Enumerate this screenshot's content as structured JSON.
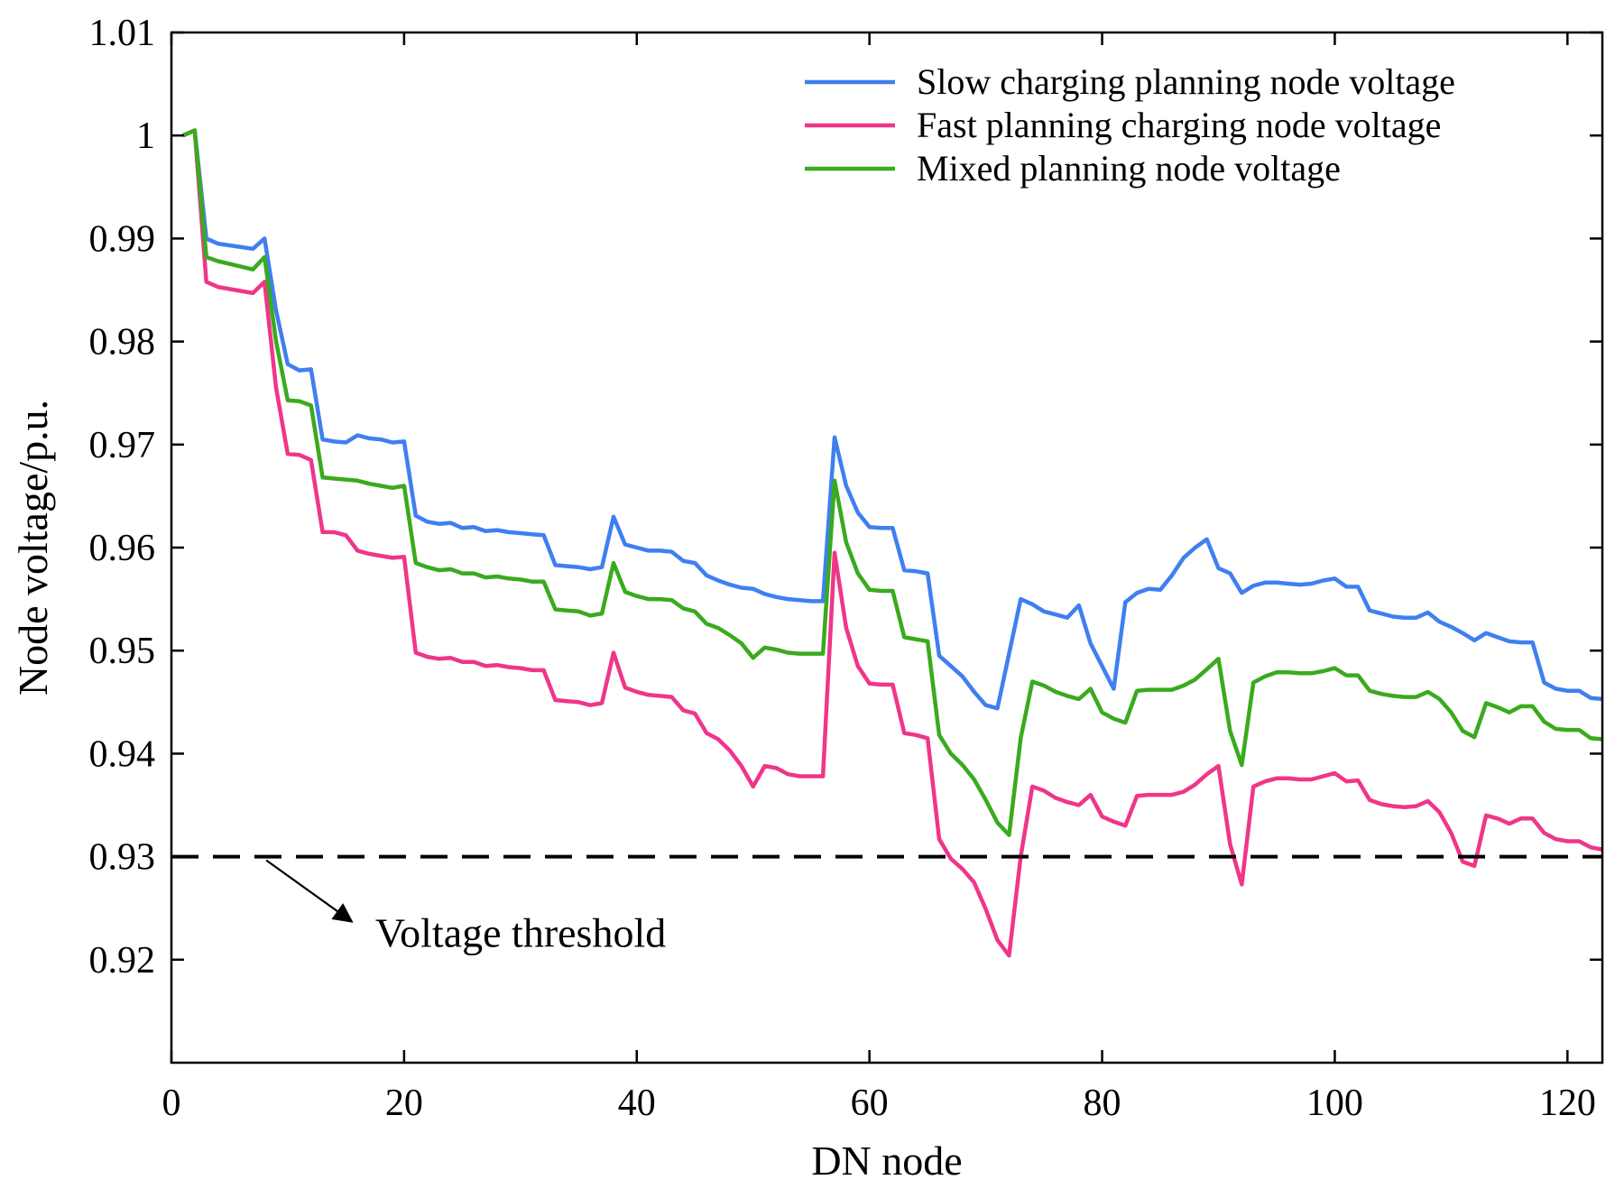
{
  "chart_data": {
    "type": "line",
    "title": "",
    "xlabel": "DN node",
    "ylabel": "Node voltage/p.u.",
    "xlim": [
      0,
      123
    ],
    "ylim": [
      0.91,
      1.01
    ],
    "xticks": [
      0,
      20,
      40,
      60,
      80,
      100,
      120
    ],
    "xtick_labels": [
      "0",
      "20",
      "40",
      "60",
      "80",
      "100",
      "120"
    ],
    "yticks": [
      0.92,
      0.93,
      0.94,
      0.95,
      0.96,
      0.97,
      0.98,
      0.99,
      1.0,
      1.01
    ],
    "ytick_labels": [
      "0.92",
      "0.93",
      "0.94",
      "0.95",
      "0.96",
      "0.97",
      "0.98",
      "0.99",
      "1",
      "1.01"
    ],
    "grid": false,
    "legend_position": "top-right",
    "series": [
      {
        "name": "Slow charging planning node voltage",
        "color": "#3f7ff0",
        "x": [
          1,
          2,
          3,
          4,
          7,
          8,
          9,
          10,
          11,
          12,
          13,
          14,
          15,
          16,
          17,
          18,
          19,
          20,
          21,
          22,
          23,
          24,
          25,
          26,
          27,
          28,
          29,
          30,
          31,
          32,
          33,
          34,
          35,
          36,
          37,
          38,
          39,
          40,
          41,
          42,
          43,
          44,
          45,
          46,
          47,
          48,
          49,
          50,
          51,
          52,
          53,
          54,
          55,
          56,
          57,
          58,
          59,
          60,
          61,
          62,
          63,
          64,
          65,
          66,
          67,
          68,
          69,
          70,
          71,
          72,
          73,
          74,
          75,
          76,
          77,
          78,
          79,
          80,
          81,
          82,
          83,
          84,
          85,
          86,
          87,
          88,
          89,
          90,
          91,
          92,
          93,
          94,
          95,
          96,
          97,
          98,
          99,
          100,
          101,
          102,
          103,
          104,
          105,
          106,
          107,
          108,
          109,
          110,
          111,
          112,
          113,
          114,
          115,
          116,
          117,
          118,
          119,
          120,
          121,
          122,
          123
        ],
        "values": [
          1.0,
          1.0005,
          0.99,
          0.9895,
          0.989,
          0.99,
          0.983,
          0.9778,
          0.9772,
          0.9773,
          0.9705,
          0.9703,
          0.9702,
          0.9709,
          0.9706,
          0.9705,
          0.9702,
          0.9703,
          0.9631,
          0.9625,
          0.9623,
          0.9624,
          0.9619,
          0.962,
          0.9616,
          0.9617,
          0.9615,
          0.9614,
          0.9613,
          0.9612,
          0.9583,
          0.9582,
          0.9581,
          0.9579,
          0.9581,
          0.963,
          0.9603,
          0.96,
          0.9597,
          0.9597,
          0.9596,
          0.9587,
          0.9585,
          0.9573,
          0.9568,
          0.9564,
          0.9561,
          0.956,
          0.9555,
          0.9552,
          0.955,
          0.9549,
          0.9548,
          0.9548,
          0.9707,
          0.966,
          0.9634,
          0.962,
          0.9619,
          0.9619,
          0.9578,
          0.9577,
          0.9575,
          0.9495,
          0.9485,
          0.9475,
          0.946,
          0.9447,
          0.9444,
          0.9497,
          0.955,
          0.9545,
          0.9538,
          0.9535,
          0.9532,
          0.9544,
          0.9507,
          0.9485,
          0.9463,
          0.9547,
          0.9556,
          0.956,
          0.9559,
          0.9573,
          0.959,
          0.96,
          0.9608,
          0.958,
          0.9575,
          0.9556,
          0.9563,
          0.9566,
          0.9566,
          0.9565,
          0.9564,
          0.9565,
          0.9568,
          0.957,
          0.9562,
          0.9562,
          0.9539,
          0.9536,
          0.9533,
          0.9532,
          0.9532,
          0.9537,
          0.9528,
          0.9523,
          0.9517,
          0.951,
          0.9517,
          0.9513,
          0.9509,
          0.9508,
          0.9508,
          0.9469,
          0.9463,
          0.9461,
          0.9461,
          0.9454,
          0.9453
        ]
      },
      {
        "name": "Fast planning charging node voltage",
        "color": "#f0358a",
        "x": [
          1,
          2,
          3,
          4,
          7,
          8,
          9,
          10,
          11,
          12,
          13,
          14,
          15,
          16,
          17,
          18,
          19,
          20,
          21,
          22,
          23,
          24,
          25,
          26,
          27,
          28,
          29,
          30,
          31,
          32,
          33,
          34,
          35,
          36,
          37,
          38,
          39,
          40,
          41,
          42,
          43,
          44,
          45,
          46,
          47,
          48,
          49,
          50,
          51,
          52,
          53,
          54,
          55,
          56,
          57,
          58,
          59,
          60,
          61,
          62,
          63,
          64,
          65,
          66,
          67,
          68,
          69,
          70,
          71,
          72,
          73,
          74,
          75,
          76,
          77,
          78,
          79,
          80,
          81,
          82,
          83,
          84,
          85,
          86,
          87,
          88,
          89,
          90,
          91,
          92,
          93,
          94,
          95,
          96,
          97,
          98,
          99,
          100,
          101,
          102,
          103,
          104,
          105,
          106,
          107,
          108,
          109,
          110,
          111,
          112,
          113,
          114,
          115,
          116,
          117,
          118,
          119,
          120,
          121,
          122,
          123
        ],
        "values": [
          1.0,
          1.0005,
          0.9858,
          0.9853,
          0.9847,
          0.9858,
          0.9755,
          0.9691,
          0.969,
          0.9685,
          0.9615,
          0.9615,
          0.9612,
          0.9597,
          0.9594,
          0.9592,
          0.959,
          0.9591,
          0.9498,
          0.9494,
          0.9492,
          0.9493,
          0.9489,
          0.9489,
          0.9485,
          0.9486,
          0.9484,
          0.9483,
          0.9481,
          0.9481,
          0.9452,
          0.9451,
          0.945,
          0.9447,
          0.9449,
          0.9498,
          0.9464,
          0.946,
          0.9457,
          0.9456,
          0.9455,
          0.9442,
          0.9439,
          0.942,
          0.9414,
          0.9403,
          0.9388,
          0.9368,
          0.9388,
          0.9386,
          0.938,
          0.9378,
          0.9378,
          0.9378,
          0.9595,
          0.9522,
          0.9485,
          0.9468,
          0.9467,
          0.9467,
          0.942,
          0.9418,
          0.9415,
          0.9317,
          0.9298,
          0.9288,
          0.9275,
          0.9249,
          0.9219,
          0.9204,
          0.93,
          0.9368,
          0.9364,
          0.9357,
          0.9353,
          0.935,
          0.936,
          0.9339,
          0.9334,
          0.933,
          0.9359,
          0.936,
          0.936,
          0.936,
          0.9363,
          0.937,
          0.938,
          0.9388,
          0.9312,
          0.9273,
          0.9368,
          0.9373,
          0.9376,
          0.9376,
          0.9375,
          0.9375,
          0.9378,
          0.9381,
          0.9373,
          0.9374,
          0.9355,
          0.9351,
          0.9349,
          0.9348,
          0.9349,
          0.9354,
          0.9343,
          0.9323,
          0.9295,
          0.9291,
          0.934,
          0.9337,
          0.9332,
          0.9337,
          0.9337,
          0.9323,
          0.9317,
          0.9315,
          0.9315,
          0.9309,
          0.9307
        ]
      },
      {
        "name": "Mixed planning node voltage",
        "color": "#3aaa1e",
        "x": [
          1,
          2,
          3,
          4,
          7,
          8,
          9,
          10,
          11,
          12,
          13,
          14,
          15,
          16,
          17,
          18,
          19,
          20,
          21,
          22,
          23,
          24,
          25,
          26,
          27,
          28,
          29,
          30,
          31,
          32,
          33,
          34,
          35,
          36,
          37,
          38,
          39,
          40,
          41,
          42,
          43,
          44,
          45,
          46,
          47,
          48,
          49,
          50,
          51,
          52,
          53,
          54,
          55,
          56,
          57,
          58,
          59,
          60,
          61,
          62,
          63,
          64,
          65,
          66,
          67,
          68,
          69,
          70,
          71,
          72,
          73,
          74,
          75,
          76,
          77,
          78,
          79,
          80,
          81,
          82,
          83,
          84,
          85,
          86,
          87,
          88,
          89,
          90,
          91,
          92,
          93,
          94,
          95,
          96,
          97,
          98,
          99,
          100,
          101,
          102,
          103,
          104,
          105,
          106,
          107,
          108,
          109,
          110,
          111,
          112,
          113,
          114,
          115,
          116,
          117,
          118,
          119,
          120,
          121,
          122,
          123
        ],
        "values": [
          1.0,
          1.0005,
          0.9882,
          0.9878,
          0.987,
          0.9882,
          0.98,
          0.9743,
          0.9742,
          0.9738,
          0.9668,
          0.9667,
          0.9666,
          0.9665,
          0.9662,
          0.966,
          0.9658,
          0.966,
          0.9585,
          0.9581,
          0.9578,
          0.9579,
          0.9575,
          0.9575,
          0.9571,
          0.9572,
          0.957,
          0.9569,
          0.9567,
          0.9567,
          0.954,
          0.9539,
          0.9538,
          0.9534,
          0.9536,
          0.9585,
          0.9557,
          0.9553,
          0.955,
          0.955,
          0.9549,
          0.9541,
          0.9538,
          0.9526,
          0.9522,
          0.9515,
          0.9507,
          0.9493,
          0.9503,
          0.9501,
          0.9498,
          0.9497,
          0.9497,
          0.9497,
          0.9665,
          0.9605,
          0.9575,
          0.9559,
          0.9558,
          0.9558,
          0.9513,
          0.9511,
          0.9509,
          0.9418,
          0.94,
          0.9389,
          0.9375,
          0.9355,
          0.9333,
          0.9321,
          0.9415,
          0.947,
          0.9466,
          0.946,
          0.9456,
          0.9453,
          0.9463,
          0.944,
          0.9434,
          0.943,
          0.9461,
          0.9462,
          0.9462,
          0.9462,
          0.9466,
          0.9472,
          0.9482,
          0.9492,
          0.9422,
          0.9389,
          0.9469,
          0.9475,
          0.9479,
          0.9479,
          0.9478,
          0.9478,
          0.948,
          0.9483,
          0.9476,
          0.9476,
          0.9461,
          0.9458,
          0.9456,
          0.9455,
          0.9455,
          0.946,
          0.9453,
          0.944,
          0.9422,
          0.9416,
          0.9449,
          0.9445,
          0.944,
          0.9446,
          0.9446,
          0.9431,
          0.9424,
          0.9423,
          0.9423,
          0.9415,
          0.9414
        ]
      }
    ],
    "threshold": {
      "value": 0.93,
      "style": "dashed",
      "color": "#000000"
    },
    "annotation": {
      "text": "Voltage threshold",
      "from_x": 8,
      "from_y": 0.93,
      "to_x": 15.5,
      "to_y": 0.9237
    }
  }
}
